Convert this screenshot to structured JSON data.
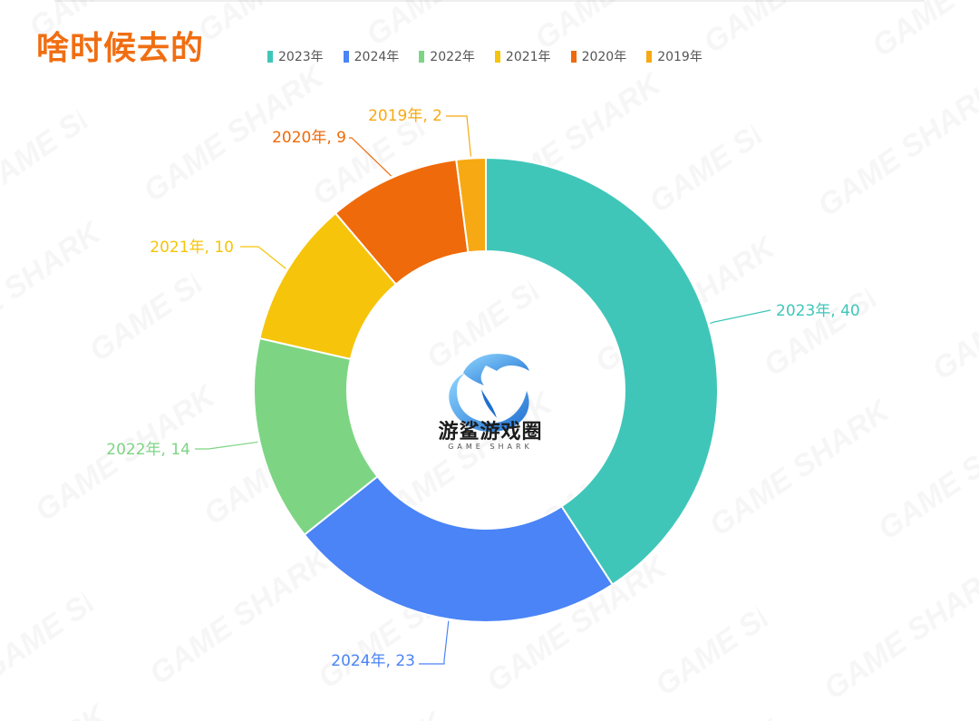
{
  "title": "啥时候去的",
  "brand": {
    "name_cn": "游鲨游戏圈",
    "name_en": "GAME SHARK"
  },
  "chart_data": {
    "type": "pie",
    "variant": "donut",
    "legend_placement": "top",
    "slices": [
      {
        "label": "2023年",
        "value": 40,
        "color": "#3fc6b9",
        "data_label": "2023年, 40"
      },
      {
        "label": "2024年",
        "value": 23,
        "color": "#4a84f6",
        "data_label": "2024年, 23"
      },
      {
        "label": "2022年",
        "value": 14,
        "color": "#7dd584",
        "data_label": "2022年, 14"
      },
      {
        "label": "2021年",
        "value": 10,
        "color": "#f6c40a",
        "data_label": "2021年, 10"
      },
      {
        "label": "2020年",
        "value": 9,
        "color": "#ef6a0a",
        "data_label": "2020年, 9"
      },
      {
        "label": "2019年",
        "value": 2,
        "color": "#f7a913",
        "data_label": "2019年, 2"
      }
    ]
  }
}
